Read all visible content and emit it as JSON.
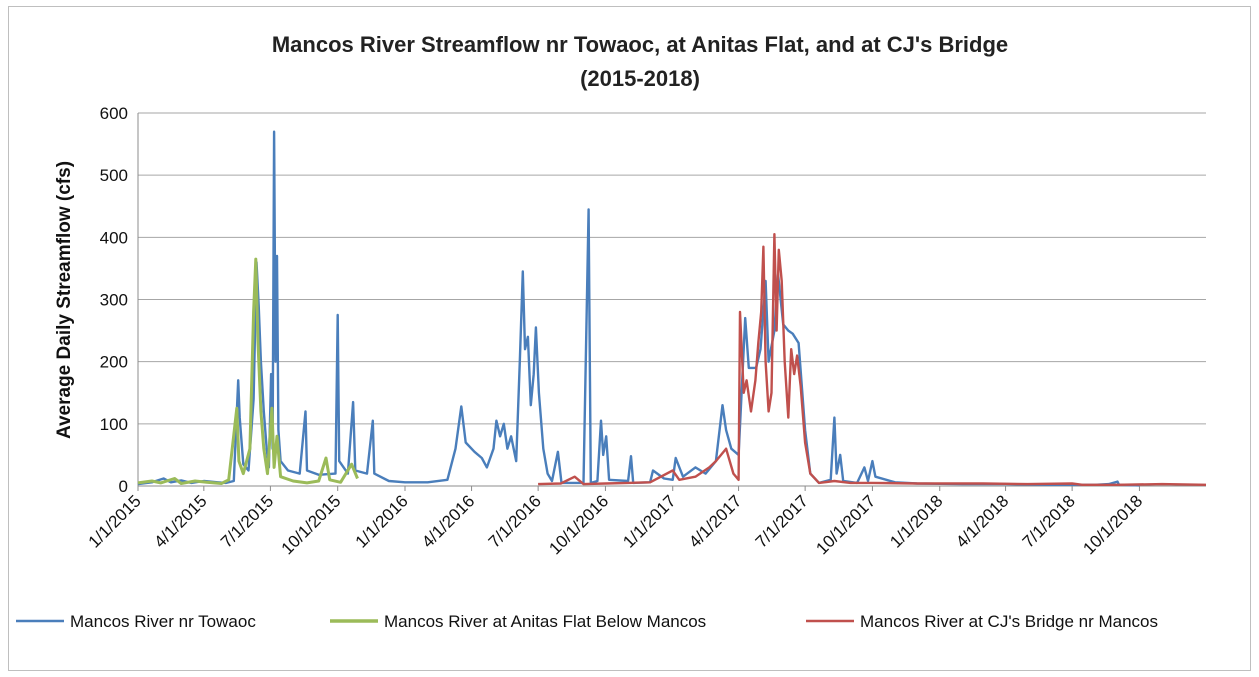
{
  "chart_data": {
    "type": "line",
    "title_lines": [
      "Mancos River Streamflow nr Towaoc, at Anitas Flat, and at CJ's Bridge",
      "(2015-2018)"
    ],
    "xlabel": "",
    "ylabel": "Average Daily Streamflow (cfs)",
    "ylim": [
      0,
      600
    ],
    "yticks": [
      "0",
      "100",
      "200",
      "300",
      "400",
      "500",
      "600"
    ],
    "x_axis_type": "date",
    "xlim": [
      "2015-01-01",
      "2018-12-31"
    ],
    "xticks": [
      "1/1/2015",
      "4/1/2015",
      "7/1/2015",
      "10/1/2015",
      "1/1/2016",
      "4/1/2016",
      "7/1/2016",
      "10/1/2016",
      "1/1/2017",
      "4/1/2017",
      "7/1/2017",
      "10/1/2017",
      "1/1/2018",
      "4/1/2018",
      "7/1/2018",
      "10/1/2018"
    ],
    "grid": "horizontal",
    "legend_position": "bottom",
    "series": [
      {
        "name": "Mancos River nr Towaoc",
        "color": "#4a7ebb",
        "points": [
          [
            "2015-01-01",
            3
          ],
          [
            "2015-01-20",
            6
          ],
          [
            "2015-02-05",
            12
          ],
          [
            "2015-02-15",
            6
          ],
          [
            "2015-03-01",
            9
          ],
          [
            "2015-03-15",
            5
          ],
          [
            "2015-04-01",
            8
          ],
          [
            "2015-04-20",
            6
          ],
          [
            "2015-05-01",
            5
          ],
          [
            "2015-05-12",
            8
          ],
          [
            "2015-05-18",
            170
          ],
          [
            "2015-05-20",
            110
          ],
          [
            "2015-05-25",
            35
          ],
          [
            "2015-06-01",
            25
          ],
          [
            "2015-06-08",
            140
          ],
          [
            "2015-06-12",
            360
          ],
          [
            "2015-06-15",
            290
          ],
          [
            "2015-06-18",
            200
          ],
          [
            "2015-06-22",
            120
          ],
          [
            "2015-06-26",
            60
          ],
          [
            "2015-06-29",
            30
          ],
          [
            "2015-07-02",
            180
          ],
          [
            "2015-07-04",
            60
          ],
          [
            "2015-07-06",
            570
          ],
          [
            "2015-07-08",
            200
          ],
          [
            "2015-07-10",
            370
          ],
          [
            "2015-07-12",
            90
          ],
          [
            "2015-07-15",
            40
          ],
          [
            "2015-07-25",
            25
          ],
          [
            "2015-08-10",
            20
          ],
          [
            "2015-08-18",
            120
          ],
          [
            "2015-08-20",
            25
          ],
          [
            "2015-09-05",
            18
          ],
          [
            "2015-09-28",
            20
          ],
          [
            "2015-10-01",
            275
          ],
          [
            "2015-10-03",
            40
          ],
          [
            "2015-10-15",
            20
          ],
          [
            "2015-10-22",
            135
          ],
          [
            "2015-10-25",
            25
          ],
          [
            "2015-11-10",
            20
          ],
          [
            "2015-11-18",
            105
          ],
          [
            "2015-11-20",
            20
          ],
          [
            "2015-12-10",
            8
          ],
          [
            "2016-01-01",
            6
          ],
          [
            "2016-02-01",
            6
          ],
          [
            "2016-02-28",
            10
          ],
          [
            "2016-03-10",
            60
          ],
          [
            "2016-03-18",
            128
          ],
          [
            "2016-03-24",
            70
          ],
          [
            "2016-04-05",
            55
          ],
          [
            "2016-04-15",
            45
          ],
          [
            "2016-04-22",
            30
          ],
          [
            "2016-05-01",
            60
          ],
          [
            "2016-05-05",
            105
          ],
          [
            "2016-05-10",
            80
          ],
          [
            "2016-05-15",
            100
          ],
          [
            "2016-05-20",
            60
          ],
          [
            "2016-05-25",
            80
          ],
          [
            "2016-06-01",
            40
          ],
          [
            "2016-06-06",
            200
          ],
          [
            "2016-06-10",
            345
          ],
          [
            "2016-06-13",
            220
          ],
          [
            "2016-06-17",
            240
          ],
          [
            "2016-06-21",
            130
          ],
          [
            "2016-06-25",
            180
          ],
          [
            "2016-06-28",
            255
          ],
          [
            "2016-07-02",
            150
          ],
          [
            "2016-07-08",
            60
          ],
          [
            "2016-07-14",
            20
          ],
          [
            "2016-07-20",
            8
          ],
          [
            "2016-07-28",
            55
          ],
          [
            "2016-08-02",
            5
          ],
          [
            "2016-09-01",
            5
          ],
          [
            "2016-09-08",
            445
          ],
          [
            "2016-09-11",
            5
          ],
          [
            "2016-09-20",
            8
          ],
          [
            "2016-09-25",
            105
          ],
          [
            "2016-09-28",
            50
          ],
          [
            "2016-10-02",
            80
          ],
          [
            "2016-10-06",
            10
          ],
          [
            "2016-11-01",
            8
          ],
          [
            "2016-11-05",
            48
          ],
          [
            "2016-11-08",
            5
          ],
          [
            "2016-12-01",
            6
          ],
          [
            "2016-12-05",
            25
          ],
          [
            "2016-12-20",
            12
          ],
          [
            "2017-01-01",
            10
          ],
          [
            "2017-01-05",
            45
          ],
          [
            "2017-01-15",
            15
          ],
          [
            "2017-02-01",
            30
          ],
          [
            "2017-02-15",
            20
          ],
          [
            "2017-03-01",
            40
          ],
          [
            "2017-03-10",
            130
          ],
          [
            "2017-03-15",
            90
          ],
          [
            "2017-03-22",
            60
          ],
          [
            "2017-04-01",
            50
          ],
          [
            "2017-04-10",
            270
          ],
          [
            "2017-04-15",
            190
          ],
          [
            "2017-04-25",
            190
          ],
          [
            "2017-05-01",
            220
          ],
          [
            "2017-05-08",
            330
          ],
          [
            "2017-05-12",
            200
          ],
          [
            "2017-05-20",
            250
          ],
          [
            "2017-05-25",
            340
          ],
          [
            "2017-06-01",
            260
          ],
          [
            "2017-06-08",
            250
          ],
          [
            "2017-06-14",
            245
          ],
          [
            "2017-06-22",
            230
          ],
          [
            "2017-07-01",
            90
          ],
          [
            "2017-07-08",
            20
          ],
          [
            "2017-07-20",
            5
          ],
          [
            "2017-08-05",
            10
          ],
          [
            "2017-08-10",
            110
          ],
          [
            "2017-08-13",
            20
          ],
          [
            "2017-08-18",
            50
          ],
          [
            "2017-08-22",
            8
          ],
          [
            "2017-09-10",
            5
          ],
          [
            "2017-09-20",
            30
          ],
          [
            "2017-09-25",
            8
          ],
          [
            "2017-10-01",
            40
          ],
          [
            "2017-10-05",
            15
          ],
          [
            "2017-11-01",
            6
          ],
          [
            "2017-12-01",
            4
          ],
          [
            "2018-02-01",
            3
          ],
          [
            "2018-04-01",
            3
          ],
          [
            "2018-06-01",
            2
          ],
          [
            "2018-08-01",
            2
          ],
          [
            "2018-08-20",
            3
          ],
          [
            "2018-09-01",
            7
          ],
          [
            "2018-09-03",
            2
          ],
          [
            "2018-10-01",
            1
          ]
        ]
      },
      {
        "name": "Mancos River at Anitas Flat Below Mancos",
        "color": "#9bbb59",
        "points": [
          [
            "2015-01-01",
            5
          ],
          [
            "2015-01-20",
            8
          ],
          [
            "2015-02-01",
            5
          ],
          [
            "2015-02-20",
            12
          ],
          [
            "2015-03-01",
            4
          ],
          [
            "2015-03-20",
            8
          ],
          [
            "2015-04-05",
            6
          ],
          [
            "2015-04-25",
            4
          ],
          [
            "2015-05-05",
            10
          ],
          [
            "2015-05-16",
            125
          ],
          [
            "2015-05-19",
            40
          ],
          [
            "2015-05-25",
            20
          ],
          [
            "2015-06-03",
            60
          ],
          [
            "2015-06-08",
            280
          ],
          [
            "2015-06-11",
            365
          ],
          [
            "2015-06-14",
            230
          ],
          [
            "2015-06-18",
            120
          ],
          [
            "2015-06-22",
            60
          ],
          [
            "2015-06-27",
            20
          ],
          [
            "2015-07-03",
            125
          ],
          [
            "2015-07-06",
            30
          ],
          [
            "2015-07-10",
            80
          ],
          [
            "2015-07-15",
            15
          ],
          [
            "2015-08-01",
            8
          ],
          [
            "2015-08-20",
            5
          ],
          [
            "2015-09-05",
            8
          ],
          [
            "2015-09-15",
            45
          ],
          [
            "2015-09-20",
            10
          ],
          [
            "2015-10-05",
            6
          ],
          [
            "2015-10-20",
            35
          ],
          [
            "2015-10-28",
            12
          ]
        ]
      },
      {
        "name": "Mancos River at CJ's Bridge nr Mancos",
        "color": "#c0504d",
        "points": [
          [
            "2016-07-01",
            3
          ],
          [
            "2016-08-01",
            4
          ],
          [
            "2016-08-20",
            15
          ],
          [
            "2016-09-01",
            3
          ],
          [
            "2016-10-01",
            4
          ],
          [
            "2016-11-01",
            5
          ],
          [
            "2016-12-01",
            6
          ],
          [
            "2017-01-01",
            25
          ],
          [
            "2017-01-10",
            10
          ],
          [
            "2017-02-01",
            15
          ],
          [
            "2017-02-20",
            30
          ],
          [
            "2017-03-01",
            40
          ],
          [
            "2017-03-15",
            60
          ],
          [
            "2017-03-25",
            20
          ],
          [
            "2017-04-01",
            10
          ],
          [
            "2017-04-03",
            280
          ],
          [
            "2017-04-08",
            150
          ],
          [
            "2017-04-12",
            170
          ],
          [
            "2017-04-18",
            120
          ],
          [
            "2017-04-24",
            170
          ],
          [
            "2017-04-28",
            230
          ],
          [
            "2017-05-02",
            280
          ],
          [
            "2017-05-05",
            385
          ],
          [
            "2017-05-08",
            200
          ],
          [
            "2017-05-12",
            120
          ],
          [
            "2017-05-16",
            150
          ],
          [
            "2017-05-20",
            405
          ],
          [
            "2017-05-23",
            250
          ],
          [
            "2017-05-26",
            380
          ],
          [
            "2017-05-30",
            330
          ],
          [
            "2017-06-03",
            200
          ],
          [
            "2017-06-08",
            110
          ],
          [
            "2017-06-12",
            220
          ],
          [
            "2017-06-16",
            180
          ],
          [
            "2017-06-20",
            210
          ],
          [
            "2017-06-25",
            160
          ],
          [
            "2017-07-01",
            70
          ],
          [
            "2017-07-08",
            20
          ],
          [
            "2017-07-20",
            5
          ],
          [
            "2017-08-10",
            8
          ],
          [
            "2017-09-01",
            5
          ],
          [
            "2017-10-01",
            5
          ],
          [
            "2017-12-01",
            4
          ],
          [
            "2018-03-01",
            4
          ],
          [
            "2018-05-01",
            3
          ],
          [
            "2018-07-01",
            4
          ],
          [
            "2018-07-15",
            2
          ],
          [
            "2018-09-01",
            2
          ],
          [
            "2018-11-01",
            3
          ],
          [
            "2018-12-31",
            2
          ]
        ]
      }
    ]
  }
}
